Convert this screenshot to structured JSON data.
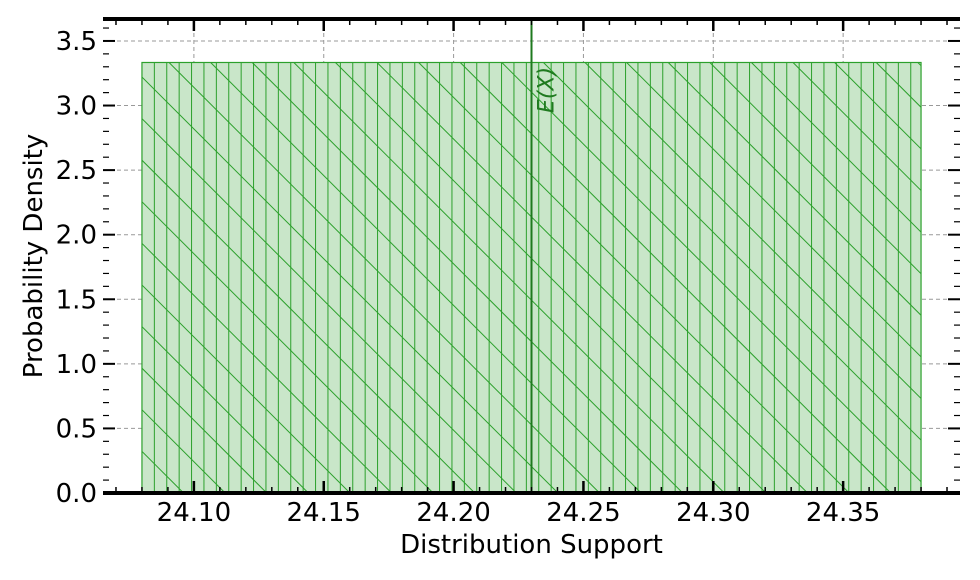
{
  "chart_data": {
    "type": "area",
    "x": [
      24.08,
      24.38
    ],
    "y": [
      3.3333,
      3.3333
    ],
    "xlabel": "Distribution Support",
    "ylabel": "Probability Density",
    "xlim": [
      24.065,
      24.395
    ],
    "ylim": [
      0.0,
      3.67
    ],
    "xticks": [
      24.1,
      24.15,
      24.2,
      24.25,
      24.3,
      24.35
    ],
    "xtick_labels": [
      "24.10",
      "24.15",
      "24.20",
      "24.25",
      "24.30",
      "24.35"
    ],
    "yticks": [
      0.0,
      0.5,
      1.0,
      1.5,
      2.0,
      2.5,
      3.0,
      3.5
    ],
    "ytick_labels": [
      "0.0",
      "0.5",
      "1.0",
      "1.5",
      "2.0",
      "2.5",
      "3.0",
      "3.5"
    ],
    "grid": true,
    "mean_line": {
      "x": 24.23,
      "label": "E(X)"
    },
    "colors": {
      "fill": "#c9e6c9",
      "edge": "#2ca02c",
      "hatch": "#2ca02c",
      "mean_line": "#1f7a1f",
      "grid": "#999999",
      "axis": "#000000"
    }
  }
}
